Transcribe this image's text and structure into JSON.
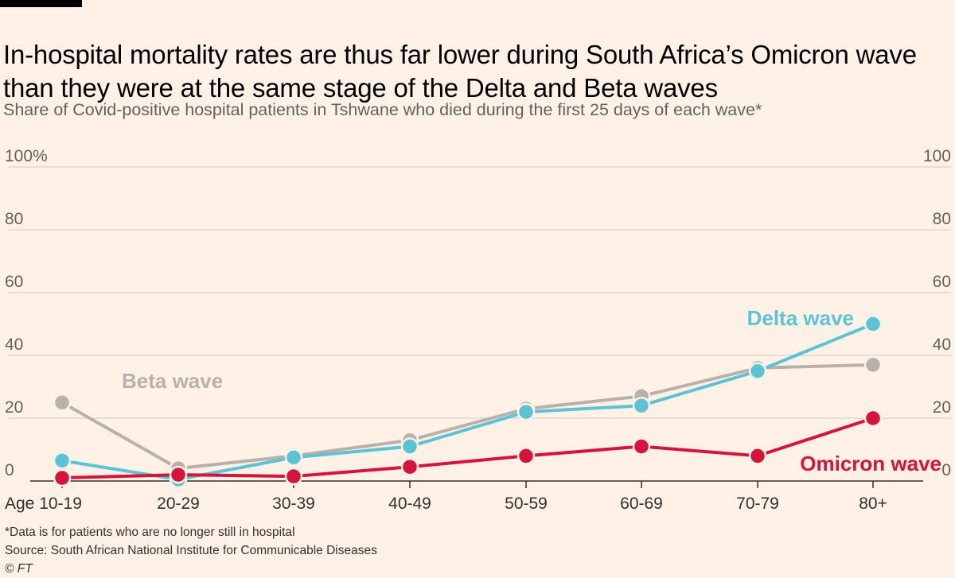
{
  "header": {
    "title": "In-hospital mortality rates are thus far lower during South Africa’s Omicron wave than they were at the same stage of the Delta and Beta waves",
    "subtitle": "Share of Covid-positive hospital patients in Tshwane who died during the first 25 days of each wave*"
  },
  "footer": {
    "note": "*Data is for patients who are no longer still in hospital",
    "source": "Source: South African National Institute for Communicable Diseases",
    "copyright": "© FT"
  },
  "colors": {
    "background": "#fff1e5",
    "gridline": "#e3d6ca",
    "axis": "#33302e",
    "beta": "#b8b1ab",
    "delta": "#5bc3d5",
    "omicron": "#d6133a",
    "muted_text": "#66605c"
  },
  "chart_data": {
    "type": "line",
    "title": "In-hospital mortality rates are thus far lower during South Africa’s Omicron wave than they were at the same stage of the Delta and Beta waves",
    "subtitle": "Share of Covid-positive hospital patients in Tshwane who died during the first 25 days of each wave*",
    "xlabel": "",
    "ylabel": "",
    "categories": [
      "Age 10-19",
      "20-29",
      "30-39",
      "40-49",
      "50-59",
      "60-69",
      "70-79",
      "80+"
    ],
    "y_ticks_left": [
      "100%",
      "80",
      "60",
      "40",
      "20",
      "0"
    ],
    "y_ticks_right": [
      "100",
      "80",
      "60",
      "40",
      "20",
      "0"
    ],
    "y_tick_values": [
      100,
      80,
      60,
      40,
      20,
      0
    ],
    "ylim": [
      0,
      100
    ],
    "grid": true,
    "legend": "direct labels",
    "series": [
      {
        "name": "Beta wave",
        "color": "#b8b1ab",
        "values": [
          25,
          4,
          8,
          13,
          23,
          27,
          36,
          37
        ]
      },
      {
        "name": "Delta wave",
        "color": "#5bc3d5",
        "values": [
          6.5,
          0.5,
          7.5,
          11,
          22,
          24,
          35,
          50
        ]
      },
      {
        "name": "Omicron wave",
        "color": "#d6133a",
        "values": [
          1,
          2,
          1.5,
          4.5,
          8,
          11,
          8,
          20
        ]
      }
    ]
  }
}
